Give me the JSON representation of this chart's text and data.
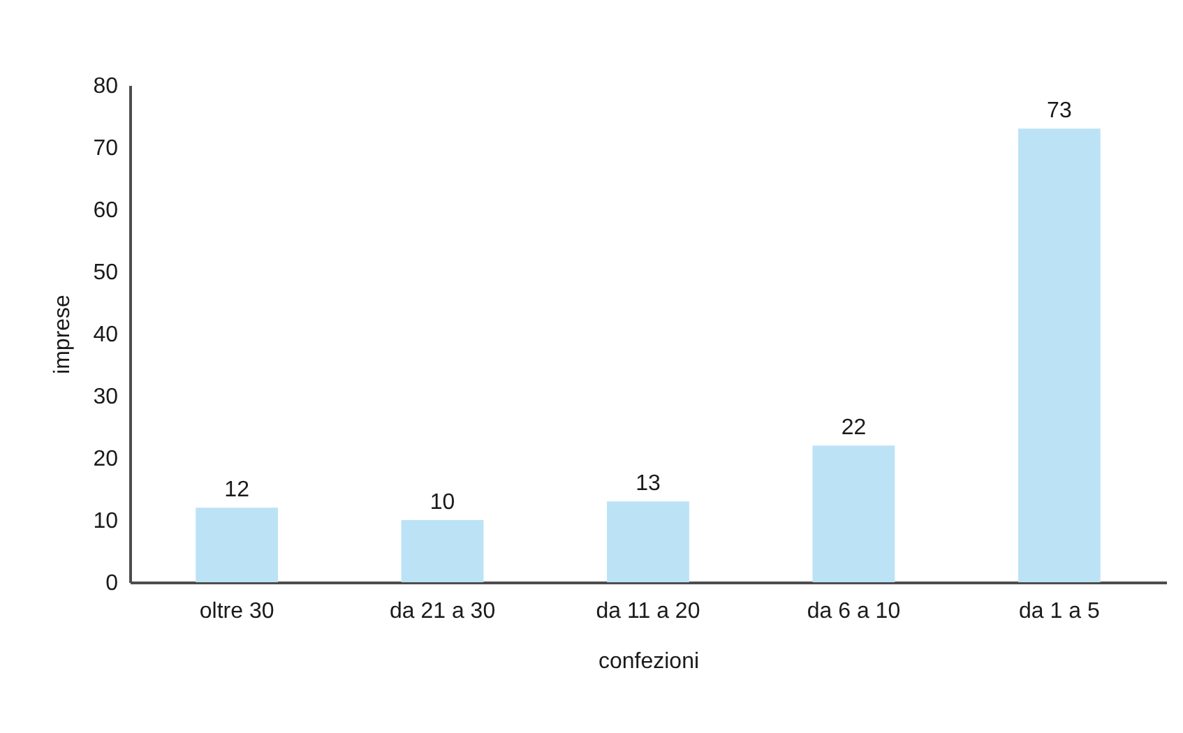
{
  "chart_data": {
    "type": "bar",
    "xlabel": "confezioni",
    "ylabel": "imprese",
    "categories": [
      "oltre 30",
      "da 21 a 30",
      "da 11 a 20",
      "da 6 a 10",
      "da 1 a 5"
    ],
    "values": [
      12,
      10,
      13,
      22,
      73
    ],
    "color": "#bce2f6",
    "ylim": [
      0,
      80
    ],
    "yticks": [
      0,
      10,
      20,
      30,
      40,
      50,
      60,
      70,
      80
    ],
    "data_labels": true
  }
}
